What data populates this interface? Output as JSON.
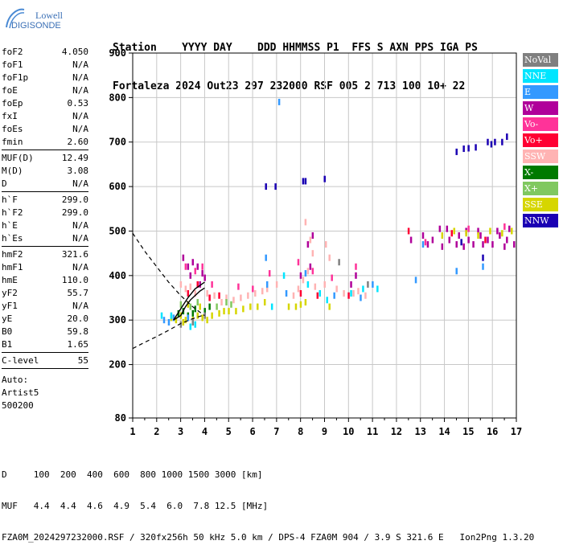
{
  "logo": {
    "brand": "Lowell",
    "product": "DIGISONDE"
  },
  "header": {
    "line1": "Station    YYYY DAY    DDD HHMMSS P1  FFS S AXN PPS IGA PS",
    "line2": "Fortaleza 2024 Out23 297 232000 RSF 005 2 713 100 10+ 22"
  },
  "params": {
    "groups": [
      [
        [
          "foF2",
          "4.050"
        ],
        [
          "foF1",
          "N/A"
        ],
        [
          "foF1p",
          "N/A"
        ],
        [
          "foE",
          "N/A"
        ],
        [
          "foEp",
          "0.53"
        ],
        [
          "fxI",
          "N/A"
        ],
        [
          "foEs",
          "N/A"
        ],
        [
          "fmin",
          "2.60"
        ]
      ],
      [
        [
          "MUF(D)",
          "12.49"
        ],
        [
          "M(D)",
          "3.08"
        ],
        [
          "D",
          "N/A"
        ]
      ],
      [
        [
          "h`F",
          "299.0"
        ],
        [
          "h`F2",
          "299.0"
        ],
        [
          "h`E",
          "N/A"
        ],
        [
          "h`Es",
          "N/A"
        ]
      ],
      [
        [
          "hmF2",
          "321.6"
        ],
        [
          "hmF1",
          "N/A"
        ],
        [
          "hmE",
          "110.0"
        ],
        [
          "yF2",
          "55.7"
        ],
        [
          "yF1",
          "N/A"
        ],
        [
          "yE",
          "20.0"
        ],
        [
          "B0",
          "59.8"
        ],
        [
          "B1",
          "1.65"
        ]
      ],
      [
        [
          "C-level",
          "55"
        ]
      ]
    ],
    "extra": [
      "Auto:",
      "Artist5",
      "500200"
    ]
  },
  "legend": [
    {
      "label": "NoVal",
      "color": "#808080",
      "text": "#ffffff"
    },
    {
      "label": "NNE",
      "color": "#00e5ff",
      "text": "#ffffff"
    },
    {
      "label": "E",
      "color": "#3399ff",
      "text": "#ffffff"
    },
    {
      "label": "W",
      "color": "#b0009a",
      "text": "#ffffff"
    },
    {
      "label": "Vo-",
      "color": "#ff3399",
      "text": "#ffffff"
    },
    {
      "label": "Vo+",
      "color": "#ff0033",
      "text": "#ffffff"
    },
    {
      "label": "SSW",
      "color": "#ffb3b3",
      "text": "#ffffff"
    },
    {
      "label": "X-",
      "color": "#007a00",
      "text": "#ffffff"
    },
    {
      "label": "X+",
      "color": "#80c860",
      "text": "#ffffff"
    },
    {
      "label": "SSE",
      "color": "#d6d600",
      "text": "#ffffff"
    },
    {
      "label": "NNW",
      "color": "#1a00b3",
      "text": "#ffffff"
    }
  ],
  "footer": {
    "line1": "D     100  200  400  600  800 1000 1500 3000 [km]",
    "line2": "MUF   4.4  4.4  4.6  4.9  5.4  6.0  7.8 12.5 [MHz]",
    "line3": "FZA0M_2024297232000.RSF / 320fx256h 50 kHz 5.0 km / DPS-4 FZA0M 904 / 3.9 S 321.6 E   Ion2Png 1.3.20"
  },
  "chart_data": {
    "type": "scatter",
    "xlim": [
      1,
      17
    ],
    "ylim": [
      80,
      900
    ],
    "x_ticks": [
      1,
      2,
      3,
      4,
      5,
      6,
      7,
      8,
      9,
      10,
      11,
      12,
      13,
      14,
      15,
      16,
      17
    ],
    "y_ticks": [
      80,
      200,
      300,
      400,
      500,
      600,
      700,
      800,
      900
    ],
    "grid": true,
    "series": [
      {
        "name": "NNW",
        "color": "#1a00b3",
        "points": [
          [
            6.55,
            600
          ],
          [
            6.95,
            600
          ],
          [
            8.1,
            612
          ],
          [
            8.2,
            612
          ],
          [
            9.0,
            617
          ],
          [
            14.5,
            678
          ],
          [
            14.8,
            685
          ],
          [
            15.0,
            686
          ],
          [
            15.3,
            688
          ],
          [
            15.8,
            700
          ],
          [
            15.95,
            695
          ],
          [
            16.1,
            700
          ],
          [
            16.4,
            700
          ],
          [
            16.6,
            712
          ],
          [
            14.7,
            475
          ],
          [
            15.6,
            440
          ]
        ]
      },
      {
        "name": "W",
        "color": "#b0009a",
        "points": [
          [
            3.1,
            440
          ],
          [
            3.3,
            420
          ],
          [
            3.5,
            430
          ],
          [
            3.7,
            420
          ],
          [
            3.9,
            405
          ],
          [
            4.0,
            395
          ],
          [
            3.4,
            400
          ],
          [
            3.8,
            380
          ],
          [
            8.5,
            490
          ],
          [
            8.3,
            470
          ],
          [
            12.6,
            480
          ],
          [
            13.1,
            490
          ],
          [
            13.3,
            470
          ],
          [
            13.5,
            480
          ],
          [
            14.2,
            480
          ],
          [
            14.5,
            470
          ],
          [
            14.6,
            490
          ],
          [
            15.0,
            480
          ],
          [
            15.2,
            470
          ],
          [
            15.5,
            490
          ],
          [
            15.8,
            480
          ],
          [
            16.0,
            470
          ],
          [
            16.3,
            490
          ],
          [
            16.6,
            480
          ],
          [
            16.9,
            470
          ],
          [
            13.8,
            505
          ],
          [
            14.1,
            505
          ],
          [
            16.7,
            505
          ],
          [
            14.9,
            500
          ],
          [
            15.4,
            500
          ],
          [
            16.2,
            500
          ],
          [
            13.9,
            465
          ],
          [
            14.8,
            465
          ],
          [
            15.6,
            470
          ],
          [
            16.5,
            465
          ],
          [
            8.0,
            400
          ],
          [
            8.4,
            420
          ],
          [
            10.1,
            380
          ],
          [
            10.3,
            400
          ]
        ]
      },
      {
        "name": "SSW",
        "color": "#ffb3b3",
        "points": [
          [
            3.0,
            380
          ],
          [
            3.2,
            370
          ],
          [
            3.4,
            375
          ],
          [
            3.6,
            360
          ],
          [
            4.1,
            360
          ],
          [
            4.4,
            355
          ],
          [
            4.7,
            340
          ],
          [
            4.9,
            350
          ],
          [
            5.2,
            345
          ],
          [
            5.5,
            350
          ],
          [
            5.8,
            355
          ],
          [
            6.1,
            360
          ],
          [
            6.4,
            365
          ],
          [
            6.6,
            370
          ],
          [
            7.0,
            380
          ],
          [
            7.7,
            355
          ],
          [
            7.9,
            370
          ],
          [
            8.1,
            390
          ],
          [
            8.3,
            410
          ],
          [
            8.6,
            375
          ],
          [
            9.0,
            380
          ],
          [
            9.2,
            440
          ],
          [
            9.5,
            370
          ],
          [
            9.8,
            360
          ],
          [
            10.2,
            360
          ],
          [
            10.4,
            365
          ],
          [
            10.7,
            355
          ],
          [
            8.2,
            520
          ],
          [
            8.4,
            480
          ],
          [
            9.05,
            470
          ],
          [
            8.5,
            450
          ]
        ]
      },
      {
        "name": "SSE",
        "color": "#d6d600",
        "points": [
          [
            2.6,
            305
          ],
          [
            2.8,
            300
          ],
          [
            3.0,
            310
          ],
          [
            3.1,
            295
          ],
          [
            3.2,
            300
          ],
          [
            3.5,
            300
          ],
          [
            3.7,
            310
          ],
          [
            3.9,
            305
          ],
          [
            4.1,
            300
          ],
          [
            4.3,
            310
          ],
          [
            4.6,
            315
          ],
          [
            4.8,
            320
          ],
          [
            5.0,
            320
          ],
          [
            5.3,
            320
          ],
          [
            5.6,
            325
          ],
          [
            5.9,
            330
          ],
          [
            6.2,
            330
          ],
          [
            6.5,
            340
          ],
          [
            7.5,
            330
          ],
          [
            7.8,
            330
          ],
          [
            8.0,
            335
          ],
          [
            8.2,
            340
          ],
          [
            13.9,
            490
          ],
          [
            14.4,
            500
          ],
          [
            14.9,
            495
          ],
          [
            15.4,
            490
          ],
          [
            15.9,
            500
          ],
          [
            16.4,
            495
          ],
          [
            16.8,
            500
          ],
          [
            9.2,
            330
          ],
          [
            3.3,
            335
          ],
          [
            3.8,
            330
          ]
        ]
      },
      {
        "name": "X-",
        "color": "#007a00",
        "points": [
          [
            3.1,
            320
          ],
          [
            3.3,
            310
          ],
          [
            3.5,
            315
          ],
          [
            2.9,
            315
          ],
          [
            3.6,
            325
          ],
          [
            4.0,
            320
          ],
          [
            4.2,
            330
          ]
        ]
      },
      {
        "name": "X+",
        "color": "#80c860",
        "points": [
          [
            3.0,
            335
          ],
          [
            3.4,
            330
          ],
          [
            3.7,
            340
          ],
          [
            4.5,
            330
          ],
          [
            5.1,
            335
          ],
          [
            4.9,
            340
          ]
        ]
      },
      {
        "name": "E",
        "color": "#3399ff",
        "points": [
          [
            2.3,
            300
          ],
          [
            2.5,
            295
          ],
          [
            2.7,
            305
          ],
          [
            3.3,
            305
          ],
          [
            6.6,
            380
          ],
          [
            7.4,
            360
          ],
          [
            8.2,
            405
          ],
          [
            9.4,
            355
          ],
          [
            10.5,
            350
          ],
          [
            11.0,
            380
          ],
          [
            7.1,
            790
          ],
          [
            6.55,
            440
          ],
          [
            12.8,
            390
          ],
          [
            15.6,
            420
          ],
          [
            14.5,
            410
          ],
          [
            13.1,
            470
          ]
        ]
      },
      {
        "name": "NNE",
        "color": "#00e5ff",
        "points": [
          [
            2.2,
            310
          ],
          [
            2.6,
            310
          ],
          [
            3.6,
            290
          ],
          [
            3.4,
            285
          ],
          [
            6.8,
            330
          ],
          [
            7.3,
            400
          ],
          [
            8.8,
            360
          ],
          [
            8.3,
            380
          ],
          [
            9.1,
            345
          ],
          [
            10.1,
            360
          ],
          [
            10.6,
            370
          ],
          [
            11.2,
            370
          ]
        ]
      },
      {
        "name": "Vo-",
        "color": "#ff3399",
        "points": [
          [
            3.2,
            420
          ],
          [
            3.6,
            410
          ],
          [
            3.9,
            420
          ],
          [
            4.3,
            380
          ],
          [
            5.4,
            375
          ],
          [
            6.0,
            370
          ],
          [
            7.9,
            430
          ],
          [
            8.5,
            410
          ],
          [
            9.3,
            395
          ],
          [
            10.3,
            420
          ],
          [
            6.7,
            405
          ],
          [
            13.2,
            475
          ],
          [
            15.0,
            505
          ],
          [
            16.5,
            510
          ]
        ]
      },
      {
        "name": "Vo+",
        "color": "#ff0033",
        "points": [
          [
            3.3,
            360
          ],
          [
            3.7,
            380
          ],
          [
            4.2,
            350
          ],
          [
            4.6,
            355
          ],
          [
            8.0,
            360
          ],
          [
            8.7,
            355
          ],
          [
            10.0,
            355
          ],
          [
            12.5,
            500
          ],
          [
            14.3,
            495
          ],
          [
            15.7,
            480
          ]
        ]
      },
      {
        "name": "NoVal",
        "color": "#808080",
        "points": [
          [
            3.0,
            290
          ],
          [
            3.5,
            295
          ],
          [
            4.0,
            310
          ],
          [
            9.6,
            430
          ],
          [
            10.8,
            380
          ]
        ]
      }
    ]
  }
}
